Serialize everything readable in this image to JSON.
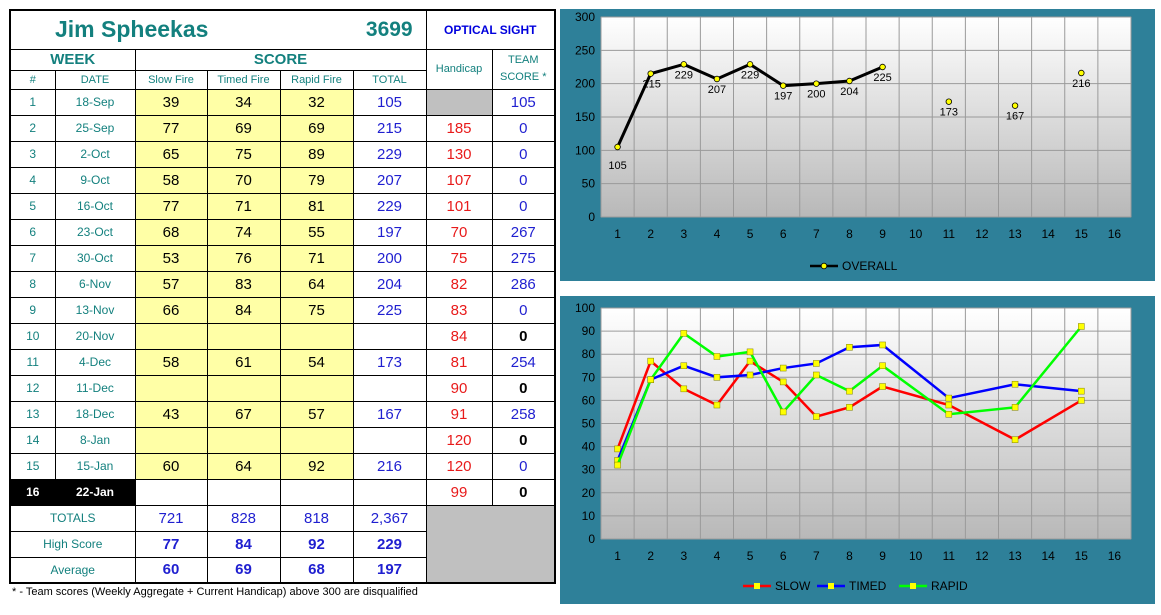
{
  "player": {
    "name": "Jim Spheekas",
    "id": "3699",
    "category": "OPTICAL SIGHT"
  },
  "headers": {
    "week": "WEEK",
    "score": "SCORE",
    "num": "#",
    "date": "DATE",
    "slow": "Slow Fire",
    "timed": "Timed Fire",
    "rapid": "Rapid Fire",
    "total": "TOTAL",
    "handicap": "Handicap",
    "team_score_1": "TEAM",
    "team_score_2": "SCORE *"
  },
  "current_week": 16,
  "weeks": [
    {
      "num": "1",
      "date": "18-Sep",
      "slow": "39",
      "timed": "34",
      "rapid": "32",
      "total": "105",
      "handicap": "",
      "team": "105"
    },
    {
      "num": "2",
      "date": "25-Sep",
      "slow": "77",
      "timed": "69",
      "rapid": "69",
      "total": "215",
      "handicap": "185",
      "team": "0"
    },
    {
      "num": "3",
      "date": "2-Oct",
      "slow": "65",
      "timed": "75",
      "rapid": "89",
      "total": "229",
      "handicap": "130",
      "team": "0"
    },
    {
      "num": "4",
      "date": "9-Oct",
      "slow": "58",
      "timed": "70",
      "rapid": "79",
      "total": "207",
      "handicap": "107",
      "team": "0"
    },
    {
      "num": "5",
      "date": "16-Oct",
      "slow": "77",
      "timed": "71",
      "rapid": "81",
      "total": "229",
      "handicap": "101",
      "team": "0"
    },
    {
      "num": "6",
      "date": "23-Oct",
      "slow": "68",
      "timed": "74",
      "rapid": "55",
      "total": "197",
      "handicap": "70",
      "team": "267"
    },
    {
      "num": "7",
      "date": "30-Oct",
      "slow": "53",
      "timed": "76",
      "rapid": "71",
      "total": "200",
      "handicap": "75",
      "team": "275"
    },
    {
      "num": "8",
      "date": "6-Nov",
      "slow": "57",
      "timed": "83",
      "rapid": "64",
      "total": "204",
      "handicap": "82",
      "team": "286"
    },
    {
      "num": "9",
      "date": "13-Nov",
      "slow": "66",
      "timed": "84",
      "rapid": "75",
      "total": "225",
      "handicap": "83",
      "team": "0"
    },
    {
      "num": "10",
      "date": "20-Nov",
      "slow": "",
      "timed": "",
      "rapid": "",
      "total": "",
      "handicap": "84",
      "team": "0"
    },
    {
      "num": "11",
      "date": "4-Dec",
      "slow": "58",
      "timed": "61",
      "rapid": "54",
      "total": "173",
      "handicap": "81",
      "team": "254"
    },
    {
      "num": "12",
      "date": "11-Dec",
      "slow": "",
      "timed": "",
      "rapid": "",
      "total": "",
      "handicap": "90",
      "team": "0"
    },
    {
      "num": "13",
      "date": "18-Dec",
      "slow": "43",
      "timed": "67",
      "rapid": "57",
      "total": "167",
      "handicap": "91",
      "team": "258"
    },
    {
      "num": "14",
      "date": "8-Jan",
      "slow": "",
      "timed": "",
      "rapid": "",
      "total": "",
      "handicap": "120",
      "team": "0"
    },
    {
      "num": "15",
      "date": "15-Jan",
      "slow": "60",
      "timed": "64",
      "rapid": "92",
      "total": "216",
      "handicap": "120",
      "team": "0"
    },
    {
      "num": "16",
      "date": "22-Jan",
      "slow": "",
      "timed": "",
      "rapid": "",
      "total": "",
      "handicap": "99",
      "team": "0"
    }
  ],
  "summary": {
    "totals": {
      "label": "TOTALS",
      "slow": "721",
      "timed": "828",
      "rapid": "818",
      "total": "2,367"
    },
    "high": {
      "label": "High Score",
      "slow": "77",
      "timed": "84",
      "rapid": "92",
      "total": "229"
    },
    "average": {
      "label": "Average",
      "slow": "60",
      "timed": "69",
      "rapid": "68",
      "total": "197"
    }
  },
  "footnote": "* - Team scores (Weekly Aggregate + Current Handicap) above 300 are disqualified",
  "colors": {
    "teal": "#13807e",
    "blue": "#1f1fd0",
    "red": "#e81a1a",
    "yellow": "#ffffa6",
    "panel": "#2e8099"
  },
  "chart_data": [
    {
      "type": "line",
      "x": [
        1,
        2,
        3,
        4,
        5,
        6,
        7,
        8,
        9,
        11,
        13,
        15
      ],
      "xticks": [
        1,
        2,
        3,
        4,
        5,
        6,
        7,
        8,
        9,
        10,
        11,
        12,
        13,
        14,
        15,
        16
      ],
      "ylim": [
        0,
        300
      ],
      "yticks": [
        0,
        50,
        100,
        150,
        200,
        250,
        300
      ],
      "series": [
        {
          "name": "OVERALL",
          "color": "#000000",
          "marker": "#ffff00",
          "values": [
            105,
            215,
            229,
            207,
            229,
            197,
            200,
            204,
            225,
            173,
            167,
            216
          ],
          "connected_through": 9
        }
      ],
      "legend": "bottom",
      "grid": true
    },
    {
      "type": "line",
      "x": [
        1,
        2,
        3,
        4,
        5,
        6,
        7,
        8,
        9,
        11,
        13,
        15
      ],
      "xticks": [
        1,
        2,
        3,
        4,
        5,
        6,
        7,
        8,
        9,
        10,
        11,
        12,
        13,
        14,
        15,
        16
      ],
      "ylim": [
        0,
        100
      ],
      "yticks": [
        0,
        10,
        20,
        30,
        40,
        50,
        60,
        70,
        80,
        90,
        100
      ],
      "series": [
        {
          "name": "SLOW",
          "color": "#ff0000",
          "marker": "#ffff00",
          "values": [
            39,
            77,
            65,
            58,
            77,
            68,
            53,
            57,
            66,
            58,
            43,
            60
          ]
        },
        {
          "name": "TIMED",
          "color": "#0000ff",
          "marker": "#ffff00",
          "values": [
            34,
            69,
            75,
            70,
            71,
            74,
            76,
            83,
            84,
            61,
            67,
            64
          ]
        },
        {
          "name": "RAPID",
          "color": "#00ff00",
          "marker": "#ffff00",
          "values": [
            32,
            69,
            89,
            79,
            81,
            55,
            71,
            64,
            75,
            54,
            57,
            92
          ]
        }
      ],
      "legend": "bottom",
      "grid": true
    }
  ]
}
